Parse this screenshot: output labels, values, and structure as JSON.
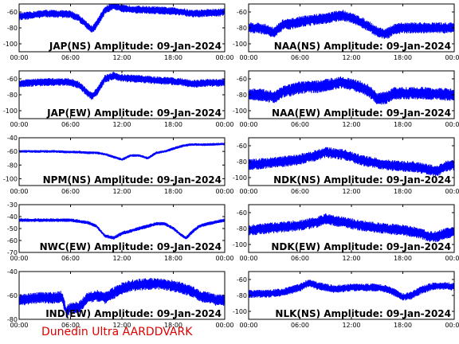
{
  "footer": "Dunedin Ultra AARDDVARK",
  "colors": {
    "trace": "#0000ff",
    "axes": "#000000",
    "footer": "#dd0000"
  },
  "chart_data": [
    {
      "type": "line",
      "title": "JAP(NS) Amplitude: 09-Jan-2024",
      "x_ticks": [
        "00:00",
        "06:00",
        "12:00",
        "18:00",
        "00:00"
      ],
      "xlim": [
        0,
        24
      ],
      "ylim": [
        -110,
        -50
      ],
      "y_ticks": [
        -60,
        -80,
        -100
      ],
      "series": [
        {
          "x": [
            0,
            3,
            6,
            7,
            8,
            8.5,
            9,
            10,
            11,
            12,
            14,
            16,
            18,
            19,
            20,
            21,
            22,
            23,
            24
          ],
          "values": [
            -66,
            -62,
            -63,
            -68,
            -78,
            -82,
            -76,
            -58,
            -52,
            -56,
            -57,
            -58,
            -59,
            -60,
            -62,
            -62,
            -61,
            -61,
            -60
          ],
          "band": 5
        }
      ]
    },
    {
      "type": "line",
      "title": "NAA(NS) Amplitude: 09-Jan-2024",
      "x_ticks": [
        "00:00",
        "06:00",
        "12:00",
        "18:00",
        "00:00"
      ],
      "xlim": [
        0,
        24
      ],
      "ylim": [
        -110,
        -50
      ],
      "y_ticks": [
        -60,
        -80,
        -100
      ],
      "series": [
        {
          "x": [
            0,
            1,
            2,
            3,
            4,
            5,
            6,
            7,
            8,
            9,
            10,
            11,
            12,
            13,
            14,
            15,
            16,
            17,
            18,
            20,
            22,
            24
          ],
          "values": [
            -80,
            -80,
            -82,
            -86,
            -76,
            -75,
            -72,
            -71,
            -69,
            -68,
            -66,
            -64,
            -68,
            -72,
            -78,
            -85,
            -88,
            -82,
            -80,
            -80,
            -80,
            -80
          ],
          "band": 7
        }
      ]
    },
    {
      "type": "line",
      "title": "JAP(EW) Amplitude: 09-Jan-2024",
      "x_ticks": [
        "00:00",
        "06:00",
        "12:00",
        "18:00",
        "00:00"
      ],
      "xlim": [
        0,
        24
      ],
      "ylim": [
        -110,
        -50
      ],
      "y_ticks": [
        -60,
        -80,
        -100
      ],
      "series": [
        {
          "x": [
            0,
            3,
            6,
            7,
            8,
            8.5,
            9,
            10,
            11,
            12,
            14,
            16,
            18,
            19,
            20,
            21,
            22,
            23,
            24
          ],
          "values": [
            -66,
            -64,
            -64,
            -68,
            -78,
            -82,
            -77,
            -60,
            -56,
            -59,
            -60,
            -62,
            -63,
            -64,
            -66,
            -66,
            -65,
            -65,
            -64
          ],
          "band": 5
        }
      ]
    },
    {
      "type": "line",
      "title": "NAA(EW) Amplitude: 09-Jan-2024",
      "x_ticks": [
        "00:00",
        "06:00",
        "12:00",
        "18:00",
        "00:00"
      ],
      "xlim": [
        0,
        24
      ],
      "ylim": [
        -110,
        -50
      ],
      "y_ticks": [
        -60,
        -80,
        -100
      ],
      "series": [
        {
          "x": [
            0,
            1,
            2,
            3,
            4,
            5,
            6,
            7,
            8,
            9,
            10,
            11,
            12,
            13,
            14,
            15,
            16,
            17,
            18,
            20,
            22,
            24
          ],
          "values": [
            -80,
            -80,
            -81,
            -83,
            -76,
            -74,
            -71,
            -70,
            -70,
            -68,
            -66,
            -64,
            -68,
            -70,
            -75,
            -85,
            -84,
            -78,
            -78,
            -78,
            -79,
            -80
          ],
          "band": 8
        }
      ]
    },
    {
      "type": "line",
      "title": "NPM(NS) Amplitude: 09-Jan-2024",
      "x_ticks": [
        "00:00",
        "06:00",
        "12:00",
        "18:00",
        "00:00"
      ],
      "xlim": [
        0,
        24
      ],
      "ylim": [
        -110,
        -40
      ],
      "y_ticks": [
        -40,
        -60,
        -80,
        -100
      ],
      "series": [
        {
          "x": [
            0,
            2,
            4,
            6,
            7,
            8,
            9,
            10,
            10.5,
            11,
            12,
            13,
            14,
            15,
            16,
            17,
            18,
            19,
            20,
            22,
            24
          ],
          "values": [
            -60,
            -60,
            -60,
            -61,
            -61,
            -62,
            -62,
            -64,
            -66,
            -68,
            -72,
            -66,
            -66,
            -70,
            -62,
            -60,
            -56,
            -52,
            -50,
            -50,
            -49
          ],
          "band": 2
        }
      ]
    },
    {
      "type": "line",
      "title": "NDK(NS) Amplitude: 09-Jan-2024",
      "x_ticks": [
        "00:00",
        "06:00",
        "12:00",
        "18:00",
        "00:00"
      ],
      "xlim": [
        0,
        24
      ],
      "ylim": [
        -110,
        -50
      ],
      "y_ticks": [
        -60,
        -80,
        -100
      ],
      "series": [
        {
          "x": [
            0,
            2,
            4,
            6,
            8,
            9,
            10,
            11,
            12,
            13,
            14,
            15,
            16,
            17,
            18,
            19,
            20,
            21,
            22,
            23,
            24
          ],
          "values": [
            -84,
            -82,
            -80,
            -77,
            -72,
            -68,
            -70,
            -71,
            -74,
            -78,
            -80,
            -82,
            -84,
            -85,
            -86,
            -86,
            -88,
            -90,
            -92,
            -86,
            -84
          ],
          "band": 7
        }
      ]
    },
    {
      "type": "line",
      "title": "NWC(EW) Amplitude: 09-Jan-2024",
      "x_ticks": [
        "00:00",
        "06:00",
        "12:00",
        "18:00",
        "00:00"
      ],
      "xlim": [
        0,
        24
      ],
      "ylim": [
        -70,
        -30
      ],
      "y_ticks": [
        -30,
        -40,
        -50,
        -60,
        -70
      ],
      "series": [
        {
          "x": [
            0,
            2,
            4,
            6,
            7,
            8,
            9,
            9.5,
            10,
            11,
            12,
            13,
            14,
            15,
            16,
            17,
            18,
            19,
            19.5,
            20,
            21,
            22,
            24
          ],
          "values": [
            -43,
            -43,
            -43,
            -43,
            -44,
            -45,
            -48,
            -52,
            -56,
            -58,
            -54,
            -52,
            -50,
            -48,
            -46,
            -46,
            -50,
            -56,
            -58,
            -54,
            -48,
            -46,
            -43
          ],
          "band": 1.5
        }
      ]
    },
    {
      "type": "line",
      "title": "NDK(EW) Amplitude: 09-Jan-2024",
      "x_ticks": [
        "00:00",
        "06:00",
        "12:00",
        "18:00",
        "00:00"
      ],
      "xlim": [
        0,
        24
      ],
      "ylim": [
        -110,
        -50
      ],
      "y_ticks": [
        -60,
        -80,
        -100
      ],
      "series": [
        {
          "x": [
            0,
            2,
            4,
            6,
            8,
            9,
            10,
            11,
            12,
            14,
            16,
            18,
            20,
            21,
            22,
            23,
            24
          ],
          "values": [
            -82,
            -80,
            -78,
            -76,
            -72,
            -68,
            -70,
            -72,
            -74,
            -78,
            -80,
            -82,
            -86,
            -90,
            -90,
            -86,
            -84
          ],
          "band": 7
        }
      ]
    },
    {
      "type": "line",
      "title": "IND(EW) Amplitude: 09-Jan-2024",
      "x_ticks": [
        "00:00",
        "06:00",
        "12:00",
        "18:00",
        "00:00"
      ],
      "xlim": [
        0,
        24
      ],
      "ylim": [
        -80,
        -40
      ],
      "y_ticks": [
        -40,
        -60,
        -80
      ],
      "series": [
        {
          "x": [
            0,
            2,
            4,
            5,
            5.5,
            6,
            7,
            8,
            9,
            10,
            11,
            12,
            13,
            14,
            16,
            18,
            20,
            21,
            22,
            23,
            24
          ],
          "values": [
            -64,
            -62,
            -62,
            -61,
            -74,
            -70,
            -70,
            -62,
            -60,
            -62,
            -58,
            -54,
            -52,
            -51,
            -50,
            -52,
            -56,
            -60,
            -62,
            -64,
            -64
          ],
          "band": 5
        }
      ]
    },
    {
      "type": "line",
      "title": "NLK(NS) Amplitude: 09-Jan-2024",
      "x_ticks": [
        "00:00",
        "06:00",
        "12:00",
        "18:00",
        "00:00"
      ],
      "xlim": [
        0,
        24
      ],
      "ylim": [
        -110,
        -50
      ],
      "y_ticks": [
        -60,
        -80,
        -100
      ],
      "series": [
        {
          "x": [
            0,
            2,
            4,
            6,
            7,
            8,
            9,
            10,
            12,
            14,
            15,
            16,
            17,
            18,
            19,
            20,
            21,
            22,
            23,
            24
          ],
          "values": [
            -78,
            -78,
            -76,
            -70,
            -64,
            -68,
            -70,
            -72,
            -70,
            -70,
            -70,
            -72,
            -76,
            -82,
            -80,
            -74,
            -70,
            -68,
            -68,
            -69
          ],
          "band": 5
        }
      ]
    }
  ]
}
